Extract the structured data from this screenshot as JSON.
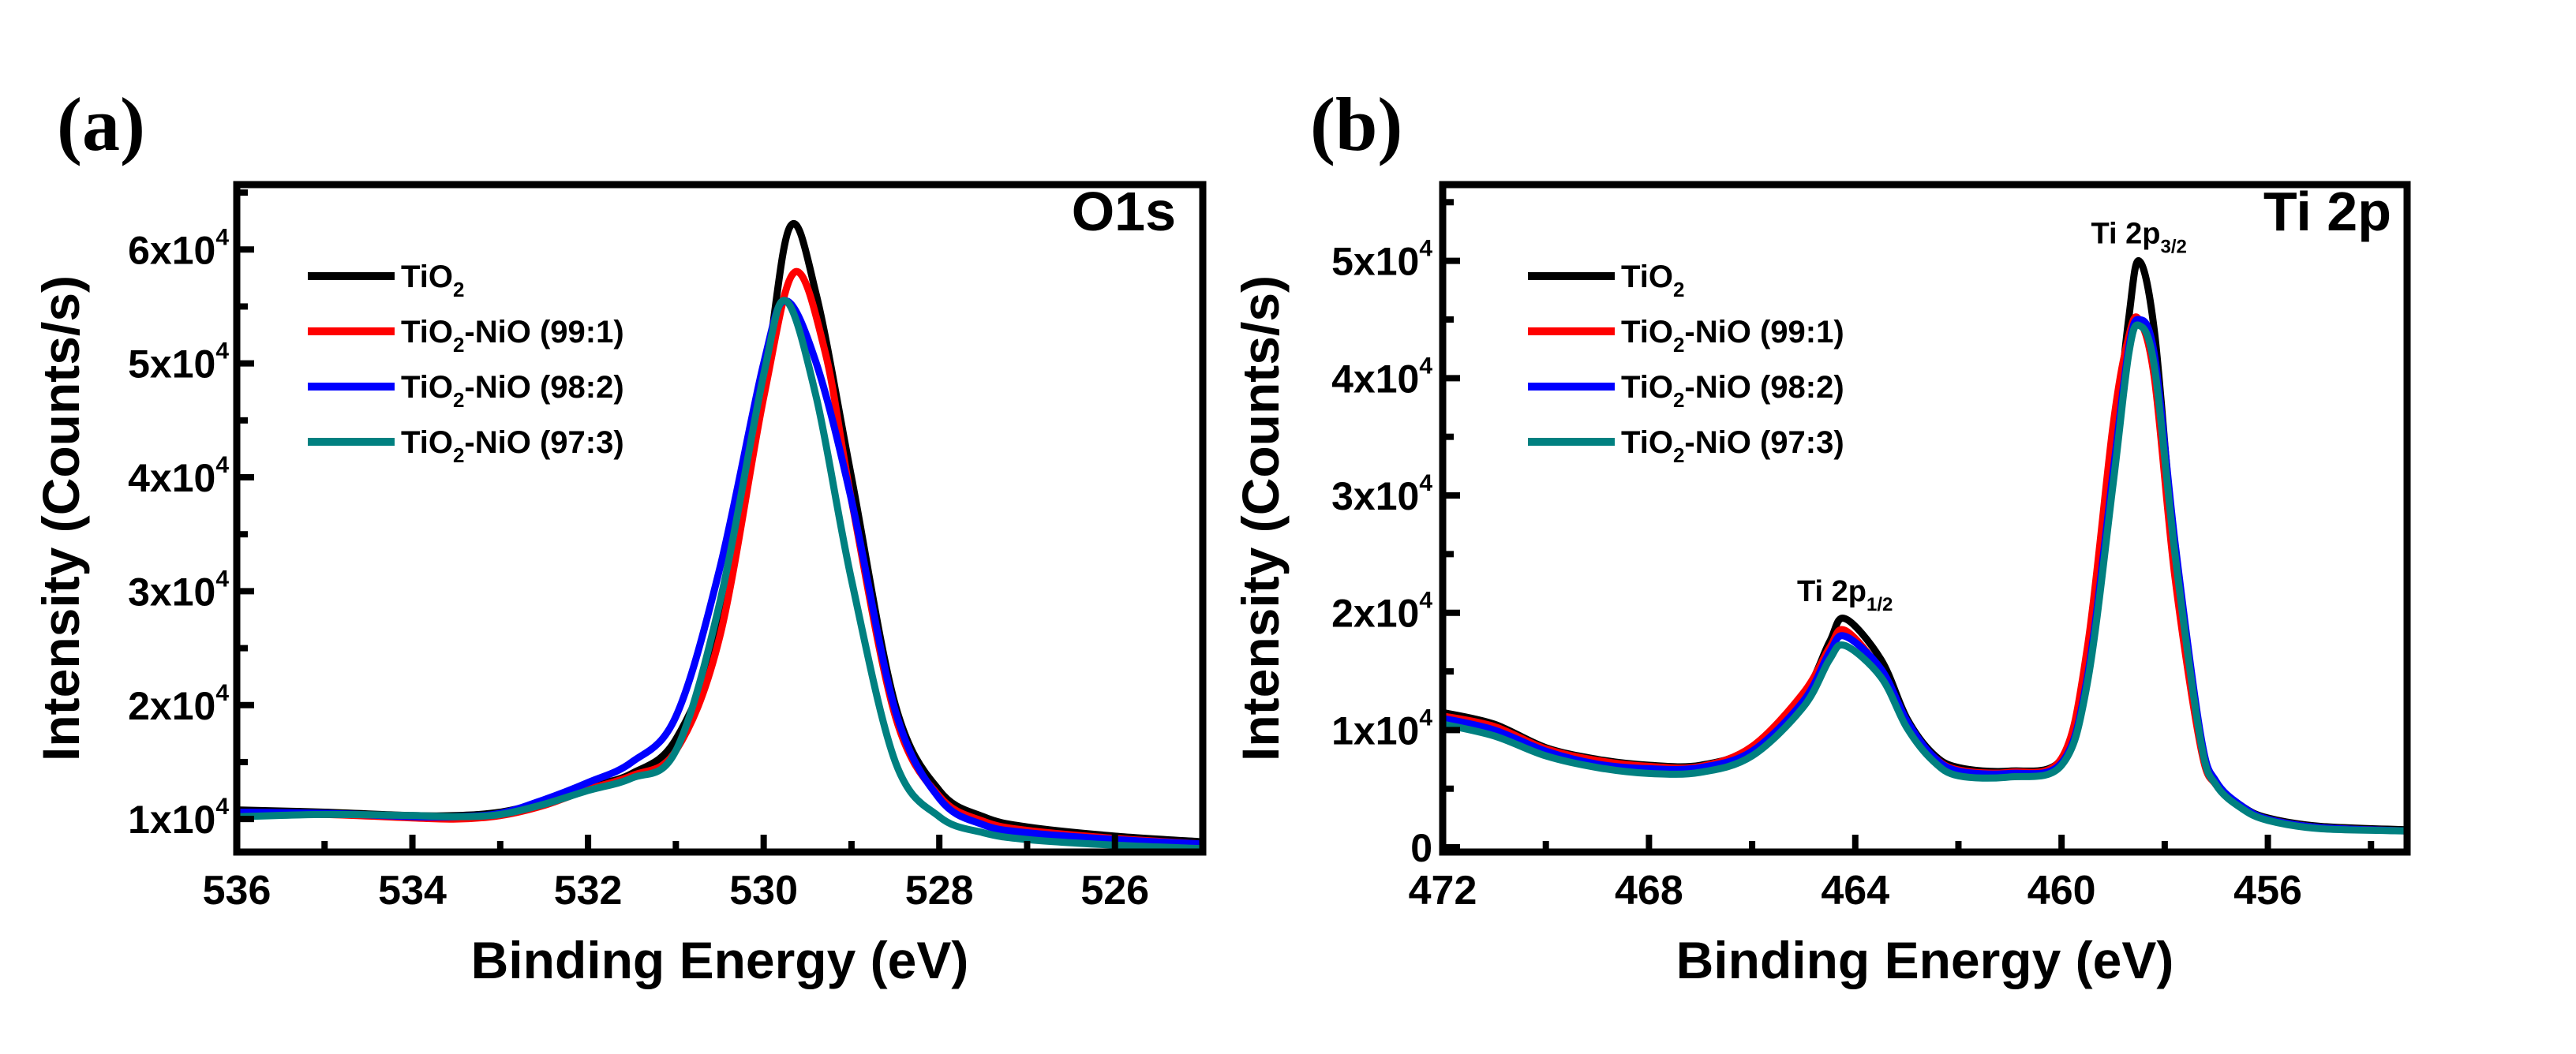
{
  "chart_data": [
    {
      "panel_label": "(a)",
      "type": "line",
      "title": "O1s",
      "xlabel": "Binding Energy (eV)",
      "ylabel": "Intensity (Counts/s)",
      "xlim": [
        536,
        525
      ],
      "ylim": [
        7100,
        65700
      ],
      "xticks": [
        536,
        534,
        532,
        530,
        528,
        526
      ],
      "yticks": [
        {
          "value": 10000,
          "base": "1x10",
          "exp": "4"
        },
        {
          "value": 20000,
          "base": "2x10",
          "exp": "4"
        },
        {
          "value": 30000,
          "base": "3x10",
          "exp": "4"
        },
        {
          "value": 40000,
          "base": "4x10",
          "exp": "4"
        },
        {
          "value": 50000,
          "base": "5x10",
          "exp": "4"
        },
        {
          "value": 60000,
          "base": "6x10",
          "exp": "4"
        }
      ],
      "legend_position": "top-left",
      "annotations": [],
      "series": [
        {
          "name": "TiO2",
          "pre": "TiO",
          "sub": "2",
          "post": "",
          "color": "#000000",
          "x": [
            536,
            535,
            534,
            533.5,
            533,
            532.5,
            532,
            531.5,
            531,
            530.5,
            530,
            529.7,
            529.4,
            529,
            528.5,
            528,
            527.5,
            527,
            526,
            525
          ],
          "y": [
            10800,
            10600,
            10300,
            10300,
            10600,
            11500,
            12800,
            14000,
            17000,
            27000,
            48000,
            62000,
            56000,
            40000,
            20000,
            12500,
            10200,
            9300,
            8500,
            8000
          ]
        },
        {
          "name": "TiO2-NiO (99:1)",
          "pre": "TiO",
          "sub": "2",
          "post": "-NiO (99:1)",
          "color": "#ff0000",
          "x": [
            536,
            535,
            534,
            533.5,
            533,
            532.5,
            532,
            531.5,
            531,
            530.5,
            530,
            529.65,
            529.3,
            529,
            528.5,
            528,
            527.5,
            527,
            526,
            525
          ],
          "y": [
            10500,
            10400,
            10100,
            10000,
            10300,
            11200,
            12600,
            13800,
            16000,
            26000,
            47000,
            58000,
            51000,
            38000,
            19000,
            12000,
            9800,
            9000,
            8300,
            7800
          ]
        },
        {
          "name": "TiO2-NiO (98:2)",
          "pre": "TiO",
          "sub": "2",
          "post": "-NiO (98:2)",
          "color": "#0000ff",
          "x": [
            536,
            535,
            534,
            533.5,
            533,
            532.5,
            532,
            531.5,
            531,
            530.5,
            530,
            529.75,
            529.4,
            529,
            528.5,
            528,
            527.5,
            527,
            526,
            525
          ],
          "y": [
            10600,
            10500,
            10200,
            10200,
            10500,
            11700,
            13200,
            15000,
            19000,
            32000,
            50000,
            55500,
            50000,
            38000,
            19500,
            11800,
            9500,
            8800,
            8200,
            7800
          ]
        },
        {
          "name": "TiO2-NiO (97:3)",
          "pre": "TiO",
          "sub": "2",
          "post": "-NiO (97:3)",
          "color": "#008080",
          "x": [
            536,
            535,
            534,
            533.5,
            533,
            532.5,
            532,
            531.5,
            531,
            530.5,
            530,
            529.75,
            529.4,
            529,
            528.5,
            528,
            527.5,
            527,
            526,
            525
          ],
          "y": [
            10200,
            10400,
            10300,
            10200,
            10400,
            11300,
            12500,
            13600,
            16000,
            29000,
            49000,
            55500,
            47000,
            31000,
            15000,
            10200,
            8800,
            8200,
            7700,
            7400
          ]
        }
      ]
    },
    {
      "panel_label": "(b)",
      "type": "line",
      "title": "Ti 2p",
      "xlabel": "Binding Energy (eV)",
      "ylabel": "Intensity (Counts/s)",
      "xlim": [
        472,
        453.3
      ],
      "ylim": [
        -400,
        56500
      ],
      "xticks": [
        472,
        468,
        464,
        460,
        456
      ],
      "yticks": [
        {
          "value": 0,
          "base": "0",
          "exp": ""
        },
        {
          "value": 10000,
          "base": "1x10",
          "exp": "4"
        },
        {
          "value": 20000,
          "base": "2x10",
          "exp": "4"
        },
        {
          "value": 30000,
          "base": "3x10",
          "exp": "4"
        },
        {
          "value": 40000,
          "base": "4x10",
          "exp": "4"
        },
        {
          "value": 50000,
          "base": "5x10",
          "exp": "4"
        }
      ],
      "legend_position": "top-left",
      "annotations": [
        {
          "pre": "Ti 2p",
          "sub": "3/2",
          "x": 458.5,
          "y": 51500
        },
        {
          "pre": "Ti 2p",
          "sub": "1/2",
          "x": 464.2,
          "y": 21000
        }
      ],
      "series": [
        {
          "name": "TiO2",
          "pre": "TiO",
          "sub": "2",
          "post": "",
          "color": "#000000",
          "x": [
            472,
            471,
            470,
            469,
            468,
            467,
            466,
            465,
            464.5,
            464.2,
            463.5,
            463,
            462.5,
            462,
            461,
            460,
            459.5,
            459,
            458.7,
            458.5,
            458.2,
            457.8,
            457.3,
            457,
            456.5,
            456,
            455,
            453.3
          ],
          "y": [
            11500,
            10500,
            8500,
            7500,
            7000,
            7000,
            8500,
            13000,
            17500,
            19500,
            16000,
            11000,
            8000,
            6800,
            6500,
            7500,
            15000,
            33000,
            45000,
            50000,
            44000,
            25000,
            9000,
            5500,
            3500,
            2500,
            1800,
            1500
          ]
        },
        {
          "name": "TiO2-NiO (99:1)",
          "pre": "TiO",
          "sub": "2",
          "post": "-NiO (99:1)",
          "color": "#ff0000",
          "x": [
            472,
            471,
            470,
            469,
            468,
            467,
            466,
            465,
            464.5,
            464.2,
            463.5,
            463,
            462.5,
            462,
            461,
            460,
            459.5,
            459,
            458.7,
            458.5,
            458.2,
            457.8,
            457.3,
            457,
            456.5,
            456,
            455,
            453.3
          ],
          "y": [
            11200,
            10300,
            8400,
            7400,
            6900,
            6900,
            8600,
            13200,
            17000,
            18500,
            15000,
            10500,
            7800,
            6600,
            6400,
            7600,
            17000,
            36000,
            43500,
            45000,
            40000,
            23000,
            8500,
            5300,
            3400,
            2400,
            1700,
            1400
          ]
        },
        {
          "name": "TiO2-NiO (98:2)",
          "pre": "TiO",
          "sub": "2",
          "post": "-NiO (98:2)",
          "color": "#0000ff",
          "x": [
            472,
            471,
            470,
            469,
            468,
            467,
            466,
            465,
            464.5,
            464.2,
            463.5,
            463,
            462.5,
            462,
            461,
            460,
            459.5,
            459,
            458.7,
            458.5,
            458.2,
            457.8,
            457.3,
            457,
            456.5,
            456,
            455,
            453.3
          ],
          "y": [
            11000,
            10000,
            8200,
            7100,
            6700,
            6800,
            8200,
            12500,
            16600,
            18000,
            15200,
            10800,
            7800,
            6500,
            6300,
            7200,
            14500,
            32000,
            42500,
            45000,
            42000,
            26000,
            9500,
            5600,
            3500,
            2400,
            1700,
            1400
          ]
        },
        {
          "name": "TiO2-NiO (97:3)",
          "pre": "TiO",
          "sub": "2",
          "post": "-NiO (97:3)",
          "color": "#008080",
          "x": [
            472,
            471,
            470,
            469,
            468,
            467,
            466,
            465,
            464.5,
            464.2,
            463.5,
            463,
            462.5,
            462,
            461,
            460,
            459.5,
            459,
            458.7,
            458.5,
            458.2,
            457.8,
            457.3,
            457,
            456.5,
            456,
            455,
            453.3
          ],
          "y": [
            10500,
            9500,
            7800,
            6800,
            6300,
            6400,
            7800,
            12000,
            16000,
            17200,
            14500,
            10200,
            7400,
            6100,
            6000,
            7000,
            14000,
            31000,
            42000,
            44500,
            41000,
            25000,
            9000,
            5300,
            3300,
            2300,
            1600,
            1400
          ]
        }
      ]
    }
  ]
}
